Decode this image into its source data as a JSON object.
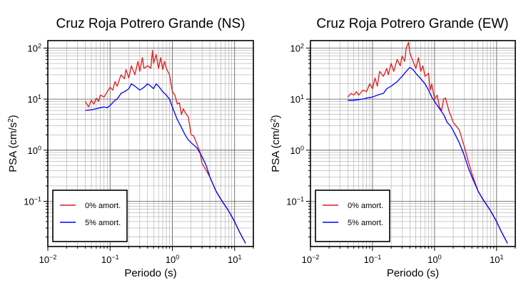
{
  "chart_data": [
    {
      "type": "line",
      "title": "Cruz Roja Potrero Grande (NS)",
      "xlabel": "Periodo (s)",
      "ylabel": "PSA (cm/s2)",
      "xscale": "log",
      "yscale": "log",
      "xlim": [
        0.01,
        20
      ],
      "ylim": [
        0.013,
        140
      ],
      "grid": true,
      "legend": "bottom-left",
      "series": [
        {
          "name": "0% amort.",
          "color": "#e31a1c",
          "x": [
            0.04,
            0.045,
            0.05,
            0.055,
            0.06,
            0.065,
            0.07,
            0.08,
            0.09,
            0.1,
            0.11,
            0.12,
            0.13,
            0.15,
            0.17,
            0.18,
            0.2,
            0.22,
            0.25,
            0.28,
            0.3,
            0.33,
            0.35,
            0.4,
            0.45,
            0.48,
            0.5,
            0.55,
            0.6,
            0.65,
            0.7,
            0.75,
            0.8,
            0.9,
            1.0,
            1.1,
            1.2,
            1.3,
            1.4,
            1.5,
            1.6,
            1.8,
            2.0,
            2.2,
            2.5,
            2.8,
            3.0,
            3.5,
            4.0,
            5.0,
            6.0,
            8.0,
            10.0,
            12.0,
            15.0
          ],
          "y": [
            9.0,
            7.0,
            9.5,
            8.0,
            10.5,
            9.0,
            12.0,
            11.0,
            14.0,
            17.0,
            15.0,
            22.0,
            18.0,
            30.0,
            25.0,
            38.0,
            26.0,
            45.0,
            30.0,
            55.0,
            35.0,
            65.0,
            40.0,
            45.0,
            40.0,
            90.0,
            50.0,
            75.0,
            40.0,
            65.0,
            38.0,
            55.0,
            40.0,
            30.0,
            14.0,
            12.0,
            8.0,
            8.5,
            5.0,
            6.5,
            5.5,
            4.5,
            2.0,
            1.9,
            1.3,
            0.9,
            0.55,
            0.4,
            0.3,
            0.16,
            0.11,
            0.065,
            0.04,
            0.025,
            0.015
          ]
        },
        {
          "name": "5% amort.",
          "color": "#0000ff",
          "x": [
            0.04,
            0.05,
            0.06,
            0.07,
            0.08,
            0.09,
            0.1,
            0.12,
            0.13,
            0.15,
            0.17,
            0.2,
            0.22,
            0.25,
            0.3,
            0.35,
            0.4,
            0.45,
            0.5,
            0.55,
            0.6,
            0.7,
            0.8,
            0.9,
            1.0,
            1.2,
            1.4,
            1.6,
            1.8,
            2.0,
            2.5,
            3.0,
            3.5,
            4.0,
            5.0,
            6.0,
            8.0,
            10.0,
            12.0,
            15.0
          ],
          "y": [
            6.0,
            6.2,
            6.5,
            6.8,
            7.0,
            6.8,
            7.5,
            9.5,
            10.0,
            13.0,
            14.0,
            16.0,
            20.0,
            18.0,
            15.0,
            17.0,
            20.0,
            18.0,
            16.0,
            20.0,
            18.0,
            14.0,
            12.0,
            10.0,
            7.0,
            4.0,
            2.8,
            2.0,
            1.6,
            1.4,
            1.1,
            0.75,
            0.5,
            0.3,
            0.16,
            0.11,
            0.065,
            0.04,
            0.025,
            0.015
          ]
        }
      ]
    },
    {
      "type": "line",
      "title": "Cruz Roja Potrero Grande (EW)",
      "xlabel": "Periodo (s)",
      "ylabel": "PSA (cm/s2)",
      "xscale": "log",
      "yscale": "log",
      "xlim": [
        0.01,
        20
      ],
      "ylim": [
        0.013,
        140
      ],
      "grid": true,
      "legend": "bottom-left",
      "series": [
        {
          "name": "0% amort.",
          "color": "#e31a1c",
          "x": [
            0.04,
            0.045,
            0.05,
            0.055,
            0.06,
            0.07,
            0.08,
            0.09,
            0.1,
            0.11,
            0.12,
            0.13,
            0.15,
            0.17,
            0.18,
            0.2,
            0.22,
            0.25,
            0.28,
            0.3,
            0.33,
            0.35,
            0.38,
            0.4,
            0.45,
            0.5,
            0.55,
            0.6,
            0.65,
            0.7,
            0.8,
            0.85,
            0.9,
            1.0,
            1.1,
            1.2,
            1.3,
            1.4,
            1.5,
            1.7,
            2.0,
            2.5,
            3.0,
            3.5,
            4.0,
            5.0,
            6.0,
            8.0,
            10.0,
            12.0,
            15.0
          ],
          "y": [
            11.0,
            13.0,
            12.0,
            14.0,
            12.0,
            15.0,
            14.0,
            20.0,
            16.0,
            26.0,
            18.0,
            35.0,
            28.0,
            40.0,
            30.0,
            50.0,
            35.0,
            60.0,
            45.0,
            70.0,
            55.0,
            100.0,
            130.0,
            80.0,
            55.0,
            40.0,
            65.0,
            35.0,
            45.0,
            28.0,
            32.0,
            15.0,
            20.0,
            10.0,
            12.0,
            7.0,
            6.0,
            10.0,
            10.5,
            6.0,
            3.5,
            2.5,
            1.2,
            0.6,
            0.35,
            0.16,
            0.11,
            0.065,
            0.04,
            0.025,
            0.015
          ]
        },
        {
          "name": "5% amort.",
          "color": "#0000ff",
          "x": [
            0.04,
            0.05,
            0.06,
            0.07,
            0.08,
            0.1,
            0.12,
            0.15,
            0.17,
            0.2,
            0.25,
            0.3,
            0.35,
            0.4,
            0.45,
            0.5,
            0.6,
            0.7,
            0.8,
            0.9,
            1.0,
            1.2,
            1.4,
            1.6,
            1.8,
            2.0,
            2.5,
            3.0,
            3.5,
            4.0,
            5.0,
            6.0,
            8.0,
            10.0,
            12.0,
            15.0
          ],
          "y": [
            9.5,
            9.5,
            9.8,
            10.0,
            10.5,
            11.0,
            12.0,
            13.0,
            16.0,
            18.0,
            22.0,
            28.0,
            35.0,
            42.0,
            38.0,
            32.0,
            25.0,
            20.0,
            15.0,
            11.0,
            9.0,
            6.5,
            5.0,
            3.5,
            3.0,
            2.4,
            1.4,
            0.8,
            0.45,
            0.3,
            0.16,
            0.11,
            0.065,
            0.04,
            0.025,
            0.015
          ]
        }
      ]
    }
  ]
}
